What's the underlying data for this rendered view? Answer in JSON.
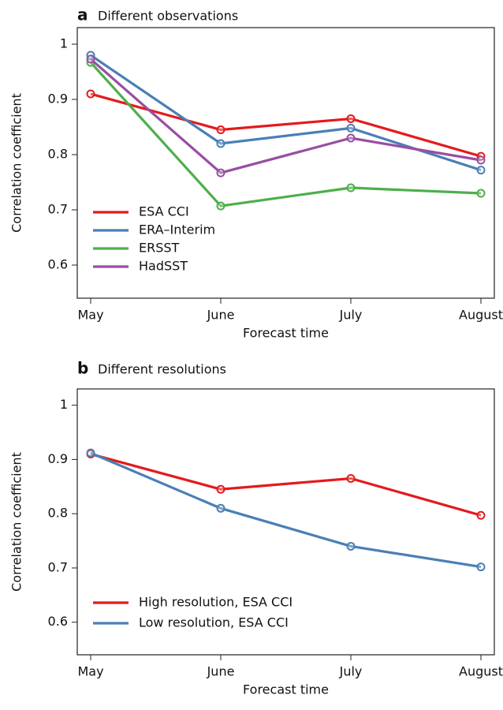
{
  "chart_data": [
    {
      "type": "line",
      "panel_label": "a",
      "title": "Different observations",
      "x_label": "Forecast time",
      "y_label": "Correlation coefficient",
      "categories": [
        "May",
        "June",
        "July",
        "August"
      ],
      "series": [
        {
          "name": "ESA CCI",
          "color": "#e41a1c",
          "values": [
            0.91,
            0.845,
            0.865,
            0.797
          ]
        },
        {
          "name": "ERA–Interim",
          "color": "#4a7fb5",
          "values": [
            0.98,
            0.82,
            0.848,
            0.772
          ]
        },
        {
          "name": "ERSST",
          "color": "#4daf4a",
          "values": [
            0.967,
            0.707,
            0.74,
            0.73
          ]
        },
        {
          "name": "HadSST",
          "color": "#984ea3",
          "values": [
            0.973,
            0.767,
            0.83,
            0.79
          ]
        }
      ],
      "ylim": [
        0.54,
        1.03
      ],
      "yticks": [
        0.6,
        0.7,
        0.8,
        0.9,
        1
      ],
      "legend": "bottom-left"
    },
    {
      "type": "line",
      "panel_label": "b",
      "title": "Different resolutions",
      "x_label": "Forecast time",
      "y_label": "Correlation coefficient",
      "categories": [
        "May",
        "June",
        "July",
        "August"
      ],
      "series": [
        {
          "name": "High resolution, ESA CCI",
          "color": "#e41a1c",
          "values": [
            0.91,
            0.845,
            0.865,
            0.797
          ]
        },
        {
          "name": "Low resolution, ESA CCI",
          "color": "#4a7fb5",
          "values": [
            0.912,
            0.81,
            0.74,
            0.702
          ]
        }
      ],
      "ylim": [
        0.54,
        1.03
      ],
      "yticks": [
        0.6,
        0.7,
        0.8,
        0.9,
        1
      ],
      "legend": "bottom-left"
    }
  ]
}
